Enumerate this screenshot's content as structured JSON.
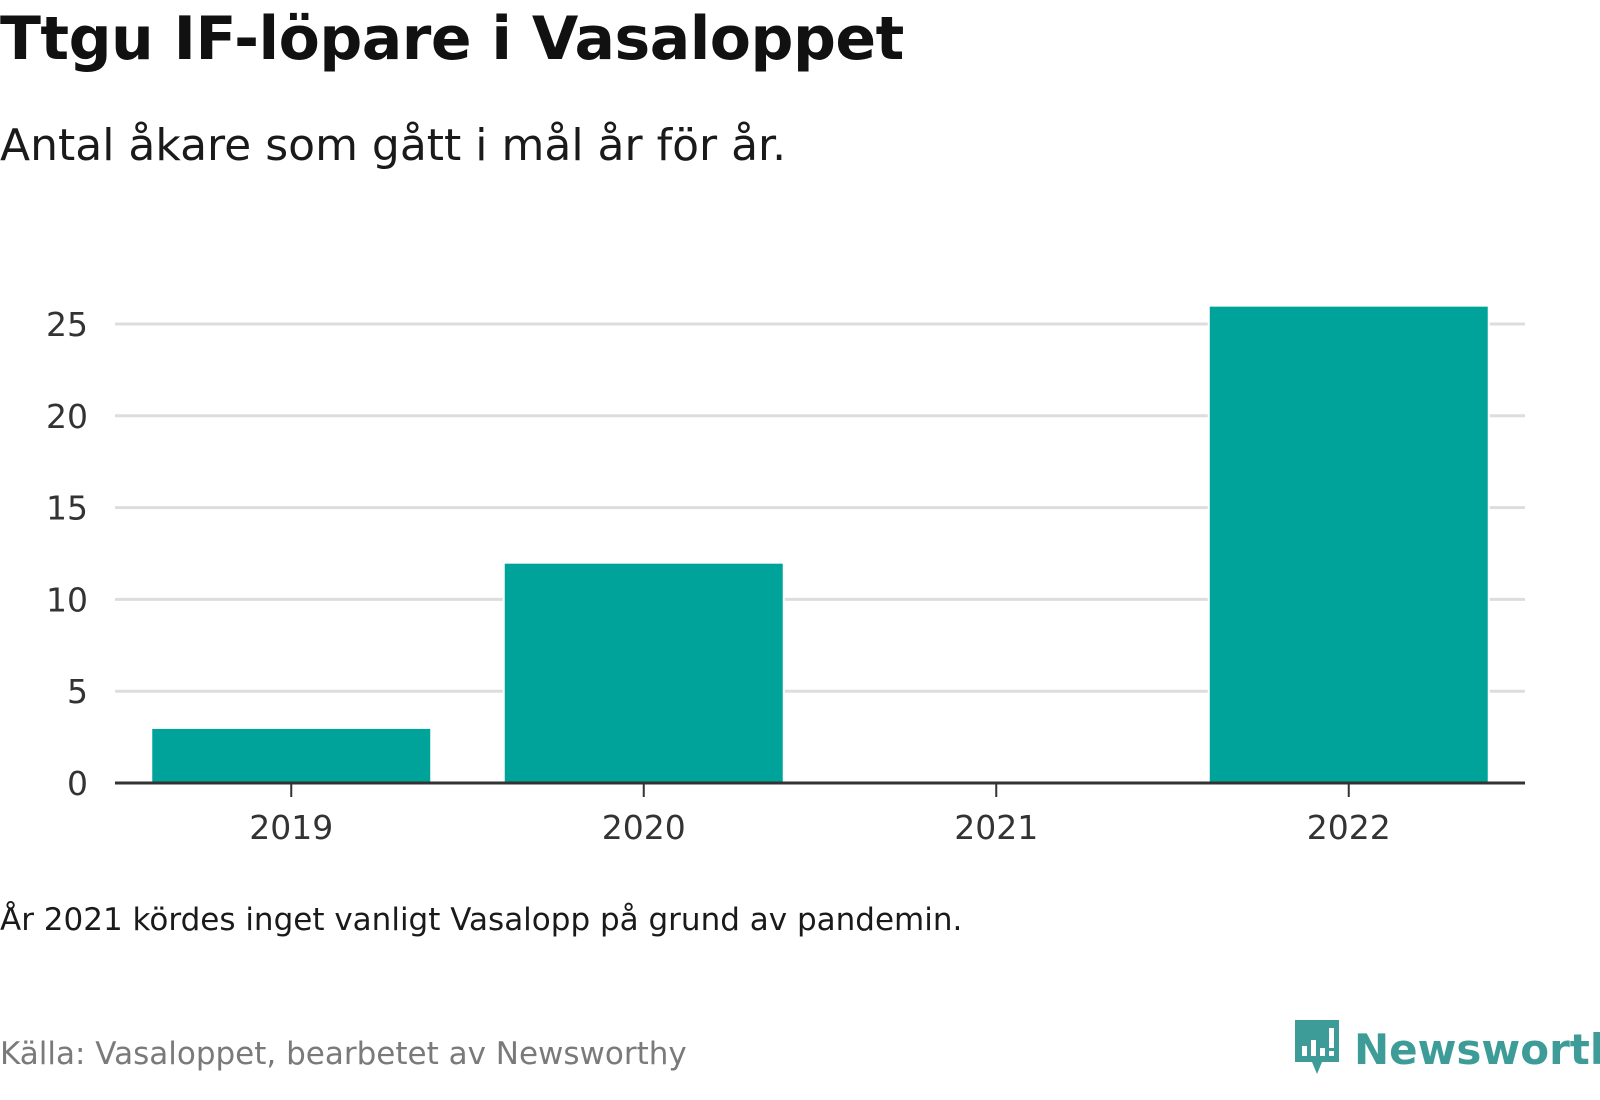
{
  "header": {
    "title": "Ttgu IF-löpare i Vasaloppet",
    "subtitle": "Antal åkare som gått i mål år för år."
  },
  "footer": {
    "note": "År 2021 kördes inget vanligt Vasalopp på grund av pandemin.",
    "source": "Källa: Vasaloppet, bearbetet av Newsworthy",
    "brand": "Newsworthy",
    "brand_icon": "newsworthy-chart-logo-icon"
  },
  "colors": {
    "bar": "#00a39a",
    "grid": "#dddddd",
    "axis": "#333333",
    "brand": "#3d9c97"
  },
  "chart_data": {
    "type": "bar",
    "title": "Ttgu IF-löpare i Vasaloppet",
    "subtitle": "Antal åkare som gått i mål år för år.",
    "xlabel": "",
    "ylabel": "",
    "categories": [
      "2019",
      "2020",
      "2021",
      "2022"
    ],
    "values": [
      3,
      12,
      0,
      26
    ],
    "ylim": [
      0,
      25
    ],
    "yticks": [
      0,
      5,
      10,
      15,
      20,
      25
    ],
    "grid": true,
    "legend": "none"
  }
}
